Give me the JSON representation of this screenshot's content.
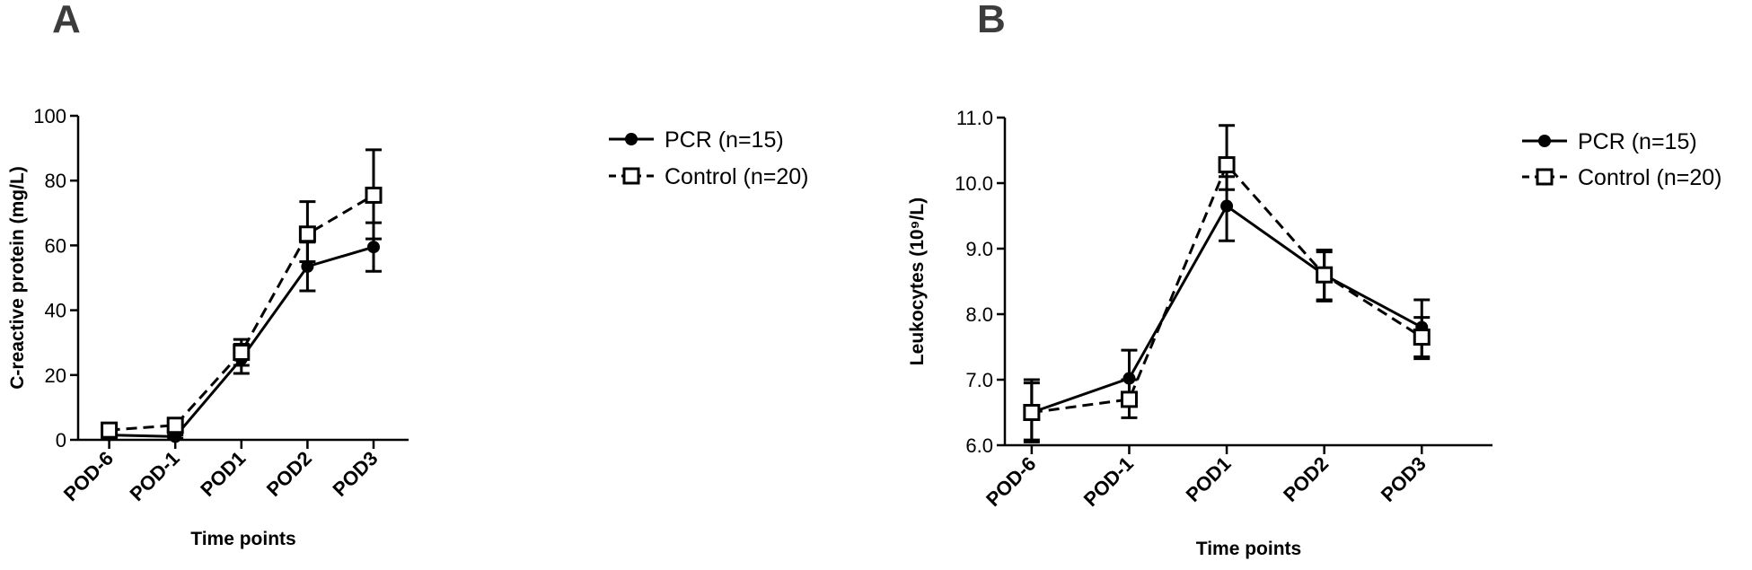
{
  "figure": {
    "panels": [
      "A",
      "B"
    ]
  },
  "chart_data": [
    {
      "type": "line",
      "panel": "A",
      "categories": [
        "POD-6",
        "POD-1",
        "POD1",
        "POD2",
        "POD3"
      ],
      "xlabel": "Time points",
      "ylabel": "C-reactive protein (mg/L)",
      "ylim": [
        0,
        100
      ],
      "yticks": [
        "0",
        "20",
        "40",
        "60",
        "80",
        "100"
      ],
      "series": [
        {
          "name": "PCR (n=15)",
          "marker": "filled-circle",
          "line": "solid",
          "values": [
            1.5,
            1.0,
            25.0,
            53.5,
            59.5
          ],
          "err_low": [
            0.5,
            0.5,
            20.5,
            46,
            52
          ],
          "err_high": [
            2.5,
            1.5,
            29.5,
            61,
            67
          ]
        },
        {
          "name": "Control (n=20)",
          "marker": "open-square",
          "line": "dashed",
          "values": [
            3.0,
            4.5,
            27.0,
            63.5,
            75.5
          ],
          "err_low": [
            2.5,
            3.0,
            23.0,
            55,
            62
          ],
          "err_high": [
            4.0,
            6.0,
            31.0,
            73.5,
            89.5
          ]
        }
      ],
      "legend_position": "right",
      "grid": false
    },
    {
      "type": "line",
      "panel": "B",
      "categories": [
        "POD-6",
        "POD-1",
        "POD1",
        "POD2",
        "POD3"
      ],
      "xlabel": "Time points",
      "ylabel": "Leukocytes (10⁹/L)",
      "ylim": [
        6.0,
        11.0
      ],
      "yticks": [
        "6.0",
        "7.0",
        "8.0",
        "9.0",
        "10.0",
        "11.0"
      ],
      "series": [
        {
          "name": "PCR (n=15)",
          "marker": "filled-circle",
          "line": "solid",
          "values": [
            6.5,
            7.02,
            9.65,
            8.6,
            7.8
          ],
          "err_low": [
            6.05,
            6.6,
            9.12,
            8.22,
            7.35
          ],
          "err_high": [
            6.95,
            7.45,
            10.1,
            8.95,
            8.22
          ]
        },
        {
          "name": "Control (n=20)",
          "marker": "open-square",
          "line": "dashed",
          "values": [
            6.5,
            6.7,
            10.28,
            8.6,
            7.65
          ],
          "err_low": [
            6.08,
            6.42,
            9.9,
            8.2,
            7.32
          ],
          "err_high": [
            7.0,
            7.0,
            10.88,
            8.98,
            7.95
          ]
        }
      ],
      "legend_position": "right",
      "grid": false
    }
  ],
  "colors": {
    "series": "#000000",
    "panel_letter": "#3c3c3c"
  }
}
